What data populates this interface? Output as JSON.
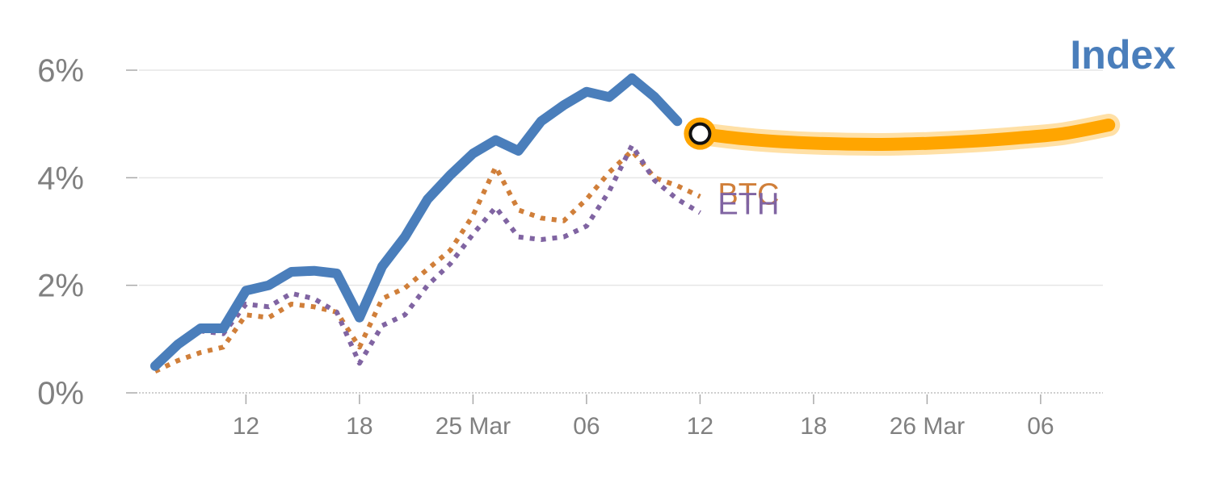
{
  "chart_data": {
    "type": "line",
    "title": "Index",
    "xlabel": "",
    "ylabel": "",
    "y_unit": "%",
    "ylim": [
      0,
      6
    ],
    "xlim": [
      0,
      43
    ],
    "grid": {
      "horizontal": true,
      "vertical": false
    },
    "y_ticks": [
      {
        "value": 0,
        "label": "0%"
      },
      {
        "value": 2,
        "label": "2%"
      },
      {
        "value": 4,
        "label": "4%"
      },
      {
        "value": 6,
        "label": "6%"
      }
    ],
    "x_ticks": [
      {
        "x": 4,
        "label": "12"
      },
      {
        "x": 9,
        "label": "18"
      },
      {
        "x": 14,
        "label": "25 Mar"
      },
      {
        "x": 19,
        "label": "06"
      },
      {
        "x": 24,
        "label": "12"
      },
      {
        "x": 29,
        "label": "18"
      },
      {
        "x": 34,
        "label": "26 Mar"
      },
      {
        "x": 39,
        "label": "06"
      }
    ],
    "colors": {
      "index": "#4a7ebb",
      "forecast": "#ffa500",
      "btc": "#d07f3a",
      "eth": "#8064a2",
      "tick": "#808080",
      "grid": "#e6e6e6"
    },
    "series": [
      {
        "name": "Index",
        "style": "solid",
        "color": "#4a7ebb",
        "x": [
          0,
          1,
          2,
          3,
          4,
          5,
          6,
          7,
          8,
          9,
          10,
          11,
          12,
          13,
          14,
          15,
          16,
          17,
          18,
          19,
          20,
          21
        ],
        "y": [
          0.5,
          0.9,
          1.2,
          1.2,
          1.9,
          2.0,
          2.25,
          2.27,
          2.22,
          1.4,
          2.35,
          2.9,
          3.6,
          4.05,
          4.45,
          4.7,
          4.5,
          5.05,
          5.35,
          5.6,
          5.5,
          5.85
        ]
      },
      {
        "name": "Index",
        "style": "solid",
        "color": "#4a7ebb",
        "x": [
          21,
          22,
          23
        ],
        "y": [
          5.85,
          5.5,
          5.05
        ]
      },
      {
        "name": "BTC",
        "style": "dotted",
        "color": "#d07f3a",
        "x": [
          0,
          1,
          2,
          3,
          4,
          5,
          6,
          7,
          8,
          9,
          10,
          11,
          12,
          13,
          14,
          15,
          16,
          17,
          18,
          19,
          20,
          21,
          22,
          23,
          24
        ],
        "y": [
          0.4,
          0.6,
          0.75,
          0.85,
          1.45,
          1.4,
          1.65,
          1.6,
          1.5,
          0.85,
          1.75,
          1.95,
          2.3,
          2.65,
          3.3,
          4.2,
          3.4,
          3.25,
          3.2,
          3.6,
          4.1,
          4.5,
          4.0,
          3.85,
          3.65
        ]
      },
      {
        "name": "ETH",
        "style": "dotted",
        "color": "#8064a2",
        "x": [
          0,
          1,
          2,
          3,
          4,
          5,
          6,
          7,
          8,
          9,
          10,
          11,
          12,
          13,
          14,
          15,
          16,
          17,
          18,
          19,
          20,
          21,
          22,
          23,
          24
        ],
        "y": [
          0.5,
          0.85,
          1.15,
          1.1,
          1.65,
          1.6,
          1.85,
          1.75,
          1.5,
          0.55,
          1.25,
          1.45,
          2.0,
          2.4,
          2.95,
          3.45,
          2.9,
          2.85,
          2.9,
          3.1,
          3.75,
          4.6,
          3.95,
          3.6,
          3.35
        ]
      },
      {
        "name": "",
        "style": "forecast",
        "color": "#ffa500",
        "x": [
          24,
          26,
          28,
          30,
          32,
          34,
          36,
          38,
          40,
          42
        ],
        "y": [
          4.82,
          4.72,
          4.66,
          4.63,
          4.62,
          4.64,
          4.68,
          4.74,
          4.82,
          4.98
        ]
      }
    ],
    "marker": {
      "x": 24,
      "y": 4.82
    }
  }
}
